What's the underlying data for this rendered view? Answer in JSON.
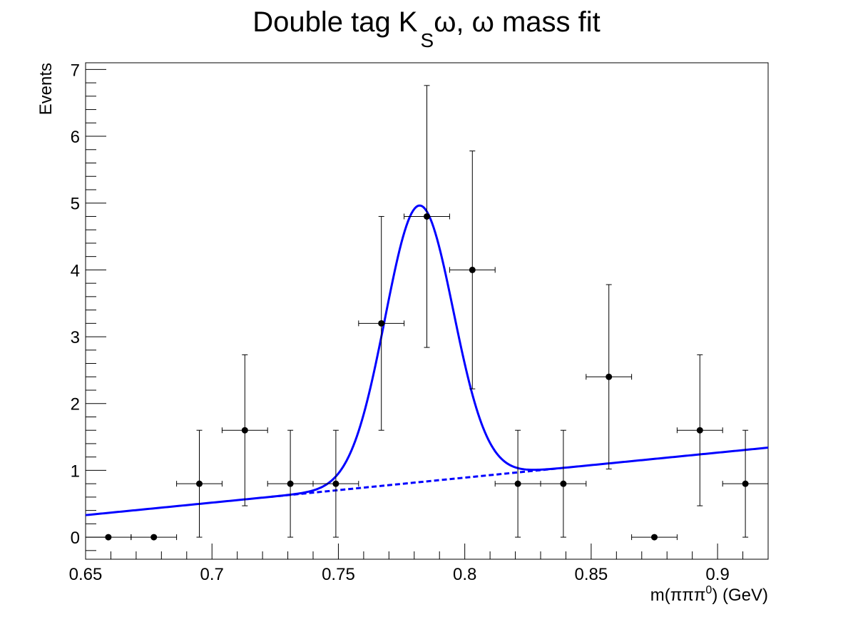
{
  "chart_data": {
    "type": "scatter",
    "title_parts": {
      "main": "Double tag K",
      "subscript": "S",
      "rest": "ω, ω mass fit"
    },
    "xlabel_parts": {
      "main": "m(πππ",
      "superscript": "0",
      "rest": ") (GeV)"
    },
    "ylabel": "Events",
    "xlim": [
      0.65,
      0.92
    ],
    "ylim": [
      -0.33,
      7.1
    ],
    "x_ticks": [
      0.65,
      0.7,
      0.75,
      0.8,
      0.85,
      0.9
    ],
    "x_tick_labels": [
      "0.65",
      "0.7",
      "0.75",
      "0.8",
      "0.85",
      "0.9"
    ],
    "y_ticks": [
      0,
      1,
      2,
      3,
      4,
      5,
      6,
      7
    ],
    "y_tick_labels": [
      "0",
      "1",
      "2",
      "3",
      "4",
      "5",
      "6",
      "7"
    ],
    "grid": false,
    "data_points": {
      "name": "",
      "color": "#000000",
      "x": [
        0.659,
        0.677,
        0.695,
        0.713,
        0.731,
        0.749,
        0.767,
        0.785,
        0.803,
        0.821,
        0.839,
        0.857,
        0.875,
        0.893,
        0.911
      ],
      "x_err": [
        0.009,
        0.009,
        0.009,
        0.009,
        0.009,
        0.009,
        0.009,
        0.009,
        0.009,
        0.009,
        0.009,
        0.009,
        0.009,
        0.009,
        0.009
      ],
      "y": [
        0,
        0,
        0.8,
        1.6,
        0.8,
        0.8,
        3.2,
        4.8,
        4.0,
        0.8,
        0.8,
        2.4,
        0,
        1.6,
        0.8
      ],
      "y_err_low": [
        0,
        0,
        0.8,
        1.13,
        0.8,
        0.8,
        1.6,
        1.96,
        1.78,
        0.8,
        0.8,
        1.38,
        0,
        1.13,
        0.8
      ],
      "y_err_high": [
        0,
        0,
        0.8,
        1.13,
        0.8,
        0.8,
        1.6,
        1.96,
        1.78,
        0.8,
        0.8,
        1.38,
        0,
        1.13,
        0.8
      ]
    },
    "fit": {
      "color": "#0000ff",
      "peak_mean": 0.782,
      "peak_sigma": 0.0135,
      "peak_amplitude": 4.14,
      "background": {
        "line_style": "dashed",
        "x_start": 0.65,
        "y_start": 0.33,
        "x_end": 0.92,
        "y_end": 1.34,
        "dashed_x_range": [
          0.723,
          0.836
        ]
      },
      "total": {
        "line_style": "solid",
        "x_range": [
          0.65,
          0.92
        ]
      }
    }
  }
}
